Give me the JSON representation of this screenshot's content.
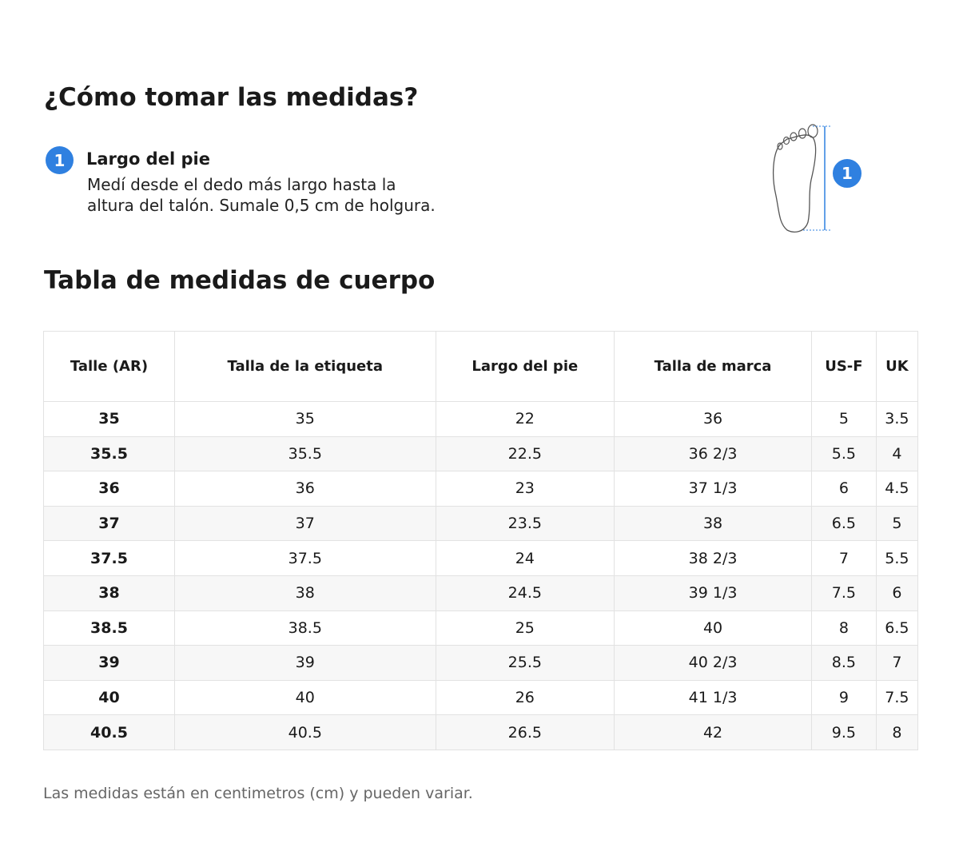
{
  "header": {
    "title": "¿Cómo tomar las medidas?"
  },
  "steps": [
    {
      "number": "1",
      "label": "Largo del pie",
      "text": [
        "Medí desde el dedo más largo hasta la",
        "altura del talón. Sumale 0,5 cm de holgura."
      ]
    }
  ],
  "section": {
    "title": "Tabla de medidas de cuerpo"
  },
  "table": {
    "headers": [
      "Talle (AR)",
      "Talla de la etiqueta",
      "Largo del pie",
      "Talla de marca",
      "US-F",
      "UK"
    ],
    "rows": [
      [
        "35",
        "35",
        "22",
        "36",
        "5",
        "3.5"
      ],
      [
        "35.5",
        "35.5",
        "22.5",
        "36 2/3",
        "5.5",
        "4"
      ],
      [
        "36",
        "36",
        "23",
        "37 1/3",
        "6",
        "4.5"
      ],
      [
        "37",
        "37",
        "23.5",
        "38",
        "6.5",
        "5"
      ],
      [
        "37.5",
        "37.5",
        "24",
        "38 2/3",
        "7",
        "5.5"
      ],
      [
        "38",
        "38",
        "24.5",
        "39 1/3",
        "7.5",
        "6"
      ],
      [
        "38.5",
        "38.5",
        "25",
        "40",
        "8",
        "6.5"
      ],
      [
        "39",
        "39",
        "25.5",
        "40 2/3",
        "8.5",
        "7"
      ],
      [
        "40",
        "40",
        "26",
        "41 1/3",
        "9",
        "7.5"
      ],
      [
        "40.5",
        "40.5",
        "26.5",
        "42",
        "9.5",
        "8"
      ]
    ]
  },
  "footnote": "Las medidas están en centimetros (cm) y pueden variar."
}
